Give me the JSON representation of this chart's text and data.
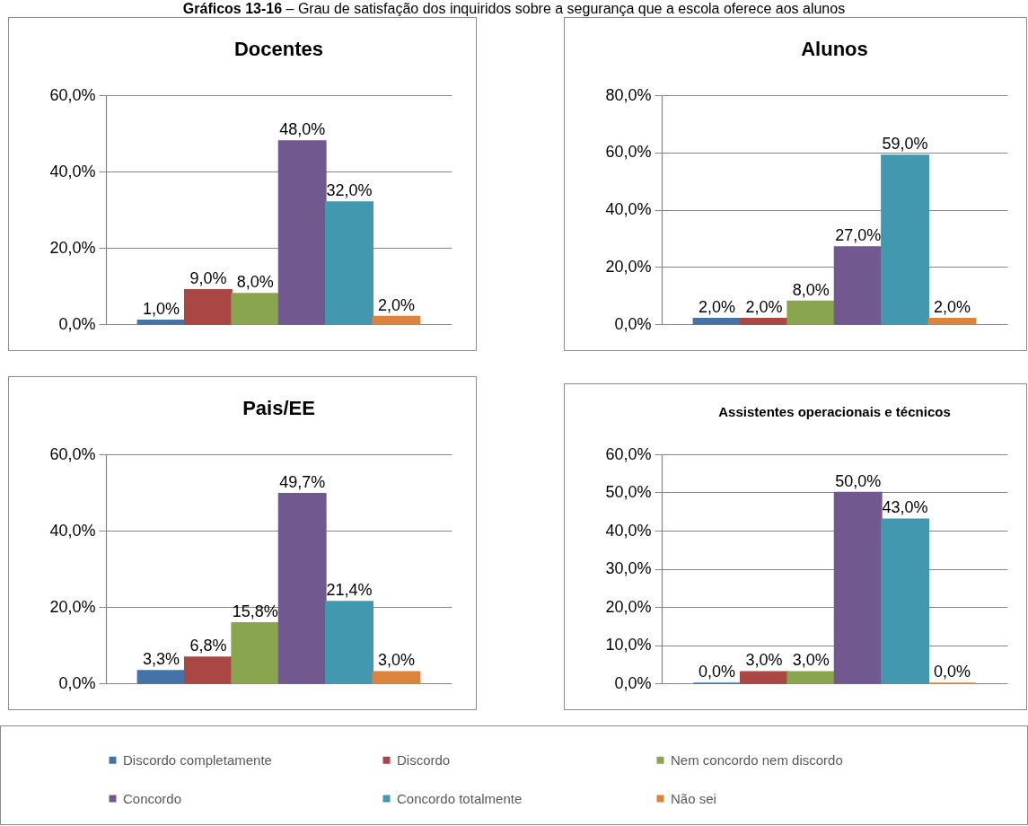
{
  "chart_data": [
    {
      "type": "bar",
      "title": "Docentes",
      "categories": [
        null
      ],
      "series": [
        {
          "name": "Discordo completamente",
          "color": "#4572a7",
          "values": [
            1.0
          ],
          "value_labels": [
            "1,0%"
          ]
        },
        {
          "name": "Discordo",
          "color": "#aa4643",
          "values": [
            9.0
          ],
          "value_labels": [
            "9,0%"
          ]
        },
        {
          "name": "Nem concordo nem discordo",
          "color": "#89a54e",
          "values": [
            8.0
          ],
          "value_labels": [
            "8,0%"
          ]
        },
        {
          "name": "Concordo",
          "color": "#71588f",
          "values": [
            48.0
          ],
          "value_labels": [
            "48,0%"
          ]
        },
        {
          "name": "Concordo totalmente",
          "color": "#4198af",
          "values": [
            32.0
          ],
          "value_labels": [
            "32,0%"
          ]
        },
        {
          "name": "Não sei",
          "color": "#db843d",
          "values": [
            2.0
          ],
          "value_labels": [
            "2,0%"
          ]
        }
      ],
      "ylim": [
        0,
        60
      ],
      "yticks": [
        {
          "value": 0,
          "label": "0,0%"
        },
        {
          "value": 20,
          "label": "20,0%"
        },
        {
          "value": 40,
          "label": "40,0%"
        },
        {
          "value": 60,
          "label": "60,0%"
        }
      ],
      "grid": "y",
      "tick_labels": "y",
      "legend": "bottom",
      "annotations": [
        "Gráficos 13-16",
        "– Grau de satisfação dos inquiridos sobre a segurança que a escola oferece aos alunos"
      ]
    },
    {
      "type": "bar",
      "title": "Alunos",
      "categories": [
        null
      ],
      "series": [
        {
          "name": "Discordo completamente",
          "color": "#4572a7",
          "values": [
            2.0
          ],
          "value_labels": [
            "2,0%"
          ]
        },
        {
          "name": "Discordo",
          "color": "#aa4643",
          "values": [
            2.0
          ],
          "value_labels": [
            "2,0%"
          ]
        },
        {
          "name": "Nem concordo nem discordo",
          "color": "#89a54e",
          "values": [
            8.0
          ],
          "value_labels": [
            "8,0%"
          ]
        },
        {
          "name": "Concordo",
          "color": "#71588f",
          "values": [
            27.0
          ],
          "value_labels": [
            "27,0%"
          ]
        },
        {
          "name": "Concordo totalmente",
          "color": "#4198af",
          "values": [
            59.0
          ],
          "value_labels": [
            "59,0%"
          ]
        },
        {
          "name": "Não sei",
          "color": "#db843d",
          "values": [
            2.0
          ],
          "value_labels": [
            "2,0%"
          ]
        }
      ],
      "ylim": [
        0,
        80
      ],
      "yticks": [
        {
          "value": 0,
          "label": "0,0%"
        },
        {
          "value": 20,
          "label": "20,0%"
        },
        {
          "value": 40,
          "label": "40,0%"
        },
        {
          "value": 60,
          "label": "60,0%"
        },
        {
          "value": 80,
          "label": "80,0%"
        }
      ],
      "grid": "y",
      "tick_labels": "y"
    },
    {
      "type": "bar",
      "title": "Pais/EE",
      "categories": [
        null
      ],
      "series": [
        {
          "name": "Discordo completamente",
          "color": "#4572a7",
          "values": [
            3.3
          ],
          "value_labels": [
            "3,3%"
          ]
        },
        {
          "name": "Discordo",
          "color": "#aa4643",
          "values": [
            6.8
          ],
          "value_labels": [
            "6,8%"
          ]
        },
        {
          "name": "Nem concordo nem discordo",
          "color": "#89a54e",
          "values": [
            15.8
          ],
          "value_labels": [
            "15,8%"
          ]
        },
        {
          "name": "Concordo",
          "color": "#71588f",
          "values": [
            49.7
          ],
          "value_labels": [
            "49,7%"
          ]
        },
        {
          "name": "Concordo totalmente",
          "color": "#4198af",
          "values": [
            21.4
          ],
          "value_labels": [
            "21,4%"
          ]
        },
        {
          "name": "Não sei",
          "color": "#db843d",
          "values": [
            3.0
          ],
          "value_labels": [
            "3,0%"
          ]
        }
      ],
      "ylim": [
        0,
        60
      ],
      "yticks": [
        {
          "value": 0,
          "label": "0,0%"
        },
        {
          "value": 20,
          "label": "20,0%"
        },
        {
          "value": 40,
          "label": "40,0%"
        },
        {
          "value": 60,
          "label": "60,0%"
        }
      ],
      "grid": "y",
      "tick_labels": "y"
    },
    {
      "type": "bar",
      "title": "Assistentes operacionais e técnicos",
      "categories": [
        null
      ],
      "series": [
        {
          "name": "Discordo completamente",
          "color": "#4572a7",
          "values": [
            0.0
          ],
          "value_labels": [
            "0,0%"
          ]
        },
        {
          "name": "Discordo",
          "color": "#aa4643",
          "values": [
            3.0
          ],
          "value_labels": [
            "3,0%"
          ]
        },
        {
          "name": "Nem concordo nem discordo",
          "color": "#89a54e",
          "values": [
            3.0
          ],
          "value_labels": [
            "3,0%"
          ]
        },
        {
          "name": "Concordo",
          "color": "#71588f",
          "values": [
            50.0
          ],
          "value_labels": [
            "50,0%"
          ]
        },
        {
          "name": "Concordo totalmente",
          "color": "#4198af",
          "values": [
            43.0
          ],
          "value_labels": [
            "43,0%"
          ]
        },
        {
          "name": "Não sei",
          "color": "#db843d",
          "values": [
            0.0
          ],
          "value_labels": [
            "0,0%"
          ]
        }
      ],
      "ylim": [
        0,
        60
      ],
      "yticks": [
        {
          "value": 0,
          "label": "0,0%"
        },
        {
          "value": 10,
          "label": "10,0%"
        },
        {
          "value": 20,
          "label": "20,0%"
        },
        {
          "value": 30,
          "label": "30,0%"
        },
        {
          "value": 40,
          "label": "40,0%"
        },
        {
          "value": 50,
          "label": "50,0%"
        },
        {
          "value": 60,
          "label": "60,0%"
        }
      ],
      "grid": "y",
      "tick_labels": "y"
    }
  ]
}
